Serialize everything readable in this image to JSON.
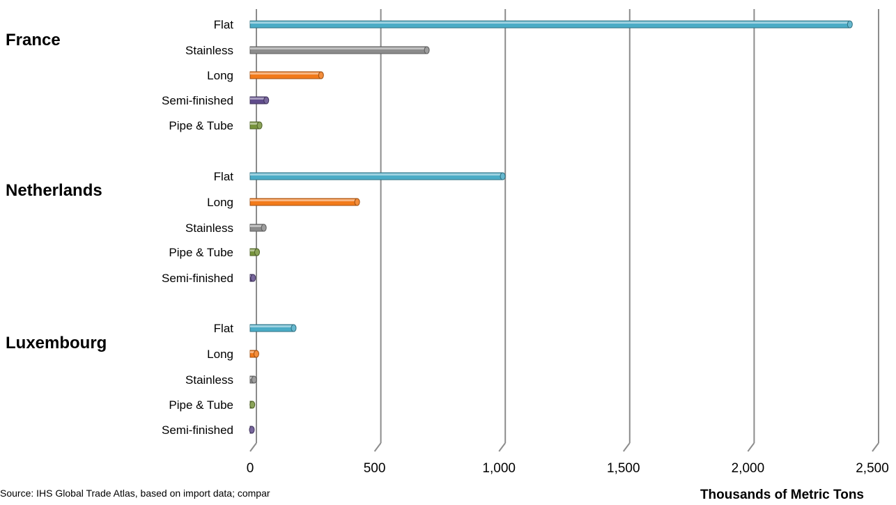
{
  "chart_data": {
    "type": "bar",
    "orientation": "horizontal",
    "xlabel": "Thousands of Metric Tons",
    "xlim": [
      0,
      2500
    ],
    "xticks": [
      "0",
      "500",
      "1,000",
      "1,500",
      "2,000",
      "2,500"
    ],
    "xtick_values": [
      0,
      500,
      1000,
      1500,
      2000,
      2500
    ],
    "grid": true,
    "source": "Source: IHS Global Trade Atlas, based on import data; compar",
    "colors": {
      "Flat": "#4bacc6",
      "Stainless": "#8c8c8c",
      "Long": "#f27a1a",
      "Semi-finished": "#5f4b8b",
      "Pipe & Tube": "#77933c"
    },
    "groups": [
      {
        "name": "France",
        "bars": [
          {
            "category": "Flat",
            "value": 2410
          },
          {
            "category": "Stainless",
            "value": 710
          },
          {
            "category": "Long",
            "value": 285
          },
          {
            "category": "Semi-finished",
            "value": 65
          },
          {
            "category": "Pipe & Tube",
            "value": 38
          }
        ]
      },
      {
        "name": "Netherlands",
        "bars": [
          {
            "category": "Flat",
            "value": 1015
          },
          {
            "category": "Long",
            "value": 430
          },
          {
            "category": "Stainless",
            "value": 55
          },
          {
            "category": "Pipe & Tube",
            "value": 28
          },
          {
            "category": "Semi-finished",
            "value": 12
          }
        ]
      },
      {
        "name": "Luxembourg",
        "bars": [
          {
            "category": "Flat",
            "value": 175
          },
          {
            "category": "Long",
            "value": 25
          },
          {
            "category": "Stainless",
            "value": 16
          },
          {
            "category": "Pipe & Tube",
            "value": 9
          },
          {
            "category": "Semi-finished",
            "value": 7
          }
        ]
      }
    ]
  }
}
